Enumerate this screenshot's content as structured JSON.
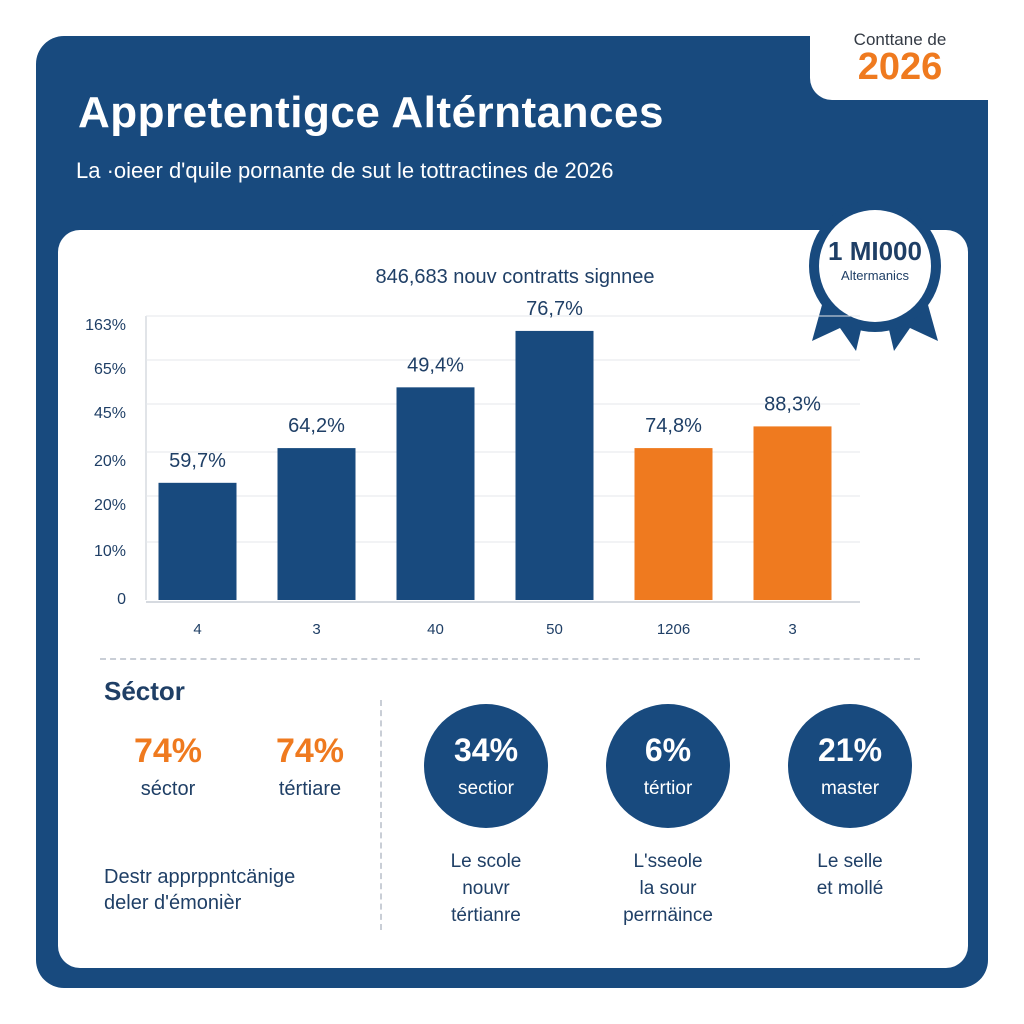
{
  "header": {
    "title": "Appretentigce Altérntances",
    "subtitle": "La ·oieer d'quile pornante de sut le tottractines de 2026",
    "corner_label": "Conttane de",
    "corner_year": "2026"
  },
  "badge": {
    "value": "1 MI000",
    "label": "Altermanics"
  },
  "chart_data": {
    "type": "bar",
    "title": "846,683 nouv contratts signnee",
    "categories": [
      "4",
      "3",
      "40",
      "50",
      "1206",
      "3"
    ],
    "values": [
      59.7,
      64.2,
      49.4,
      76.7,
      74.8,
      88.3
    ],
    "data_labels": [
      "59,7%",
      "64,2%",
      "49,4%",
      "76,7%",
      "74,8%",
      "88,3%"
    ],
    "bar_heights_reference": [
      27,
      35,
      49,
      62,
      35,
      40
    ],
    "bar_colors": [
      "#184a7e",
      "#184a7e",
      "#184a7e",
      "#184a7e",
      "#ef7a1f",
      "#ef7a1f"
    ],
    "y_tick_labels": [
      "0",
      "10%",
      "20%",
      "20%",
      "45%",
      "65%",
      "163%"
    ],
    "grid": true,
    "xlabel": "",
    "ylabel": ""
  },
  "sector": {
    "heading": "Séctor",
    "items": [
      {
        "value": "74%",
        "label": "séctor"
      },
      {
        "value": "74%",
        "label": "tértiare"
      }
    ],
    "note_line1": "Destr apprрpntcänige",
    "note_line2": "deler d'émonièr"
  },
  "circles": [
    {
      "value": "34%",
      "label": "sectior",
      "caption": [
        "Le scole",
        "nouvr",
        "tértianre"
      ]
    },
    {
      "value": "6%",
      "label": "tértior",
      "caption": [
        "L'sseole",
        "la sour",
        "perrnäince"
      ]
    },
    {
      "value": "21%",
      "label": "master",
      "caption": [
        "Le selle",
        "et mollé"
      ]
    }
  ],
  "colors": {
    "navy": "#184a7e",
    "orange": "#ef7a1f",
    "text_dark": "#1f3f66"
  }
}
